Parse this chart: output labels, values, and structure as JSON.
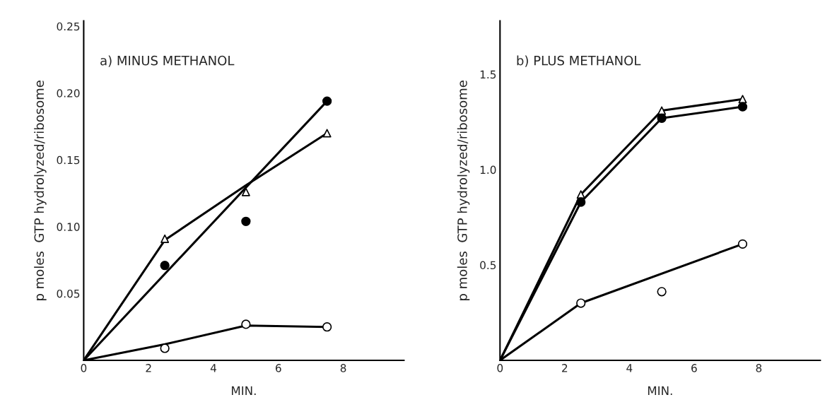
{
  "chart_data": [
    {
      "type": "scatter",
      "title": "a) MINUS METHANOL",
      "xlabel": "MIN.",
      "ylabel": "p moles  GTP hydrolyzed/ribosome",
      "xlim": [
        0,
        9.87
      ],
      "xticks": [
        0,
        2,
        4,
        6,
        8
      ],
      "ylim": [
        0,
        0.254
      ],
      "yticks": [
        0.05,
        {
          "value": 0.1,
          "label": "0.10"
        },
        0.15,
        {
          "value": 0.2,
          "label": "0.20"
        },
        0.25
      ],
      "grid": false,
      "legend": false,
      "series": [
        {
          "marker": "circle",
          "color": "#000000",
          "x": [
            2.5,
            5,
            7.5
          ],
          "values": [
            0.071,
            0.104,
            0.194
          ]
        },
        {
          "marker": "triangle",
          "color": "#ffffff",
          "x": [
            2.5,
            5,
            7.5
          ],
          "values": [
            0.091,
            0.126,
            0.17
          ]
        },
        {
          "marker": "circle",
          "color": "#ffffff",
          "x": [
            2.5,
            5,
            7.5
          ],
          "values": [
            0.009,
            0.027,
            0.025
          ]
        },
        {
          "type": "line",
          "marker": "none",
          "line_style": "solid",
          "color": "#000000",
          "x": [
            0,
            7.5
          ],
          "values": [
            0,
            0.194
          ]
        },
        {
          "type": "line",
          "marker": "none",
          "line_style": "solid",
          "color": "#000000",
          "x": [
            0,
            2.5,
            5,
            7.5
          ],
          "values": [
            0,
            0.09,
            0.131,
            0.17
          ]
        },
        {
          "type": "line",
          "marker": "none",
          "line_style": "solid",
          "color": "#000000",
          "x": [
            0,
            2.5,
            5,
            7.5
          ],
          "values": [
            0,
            0.012,
            0.026,
            0.025
          ]
        }
      ]
    },
    {
      "type": "scatter",
      "title": "b) PLUS METHANOL",
      "xlabel": "MIN.",
      "ylabel": "p moles  GTP hydrolyzed/ribosome",
      "xlim": [
        0,
        9.9
      ],
      "xticks": [
        0,
        2,
        4,
        6,
        8
      ],
      "ylim": [
        0,
        1.78
      ],
      "yticks": [
        0.5,
        {
          "value": 1.0,
          "label": "1.0"
        },
        1.5
      ],
      "grid": false,
      "legend": false,
      "series": [
        {
          "marker": "triangle",
          "color": "#ffffff",
          "x": [
            2.5,
            5,
            7.5
          ],
          "values": [
            0.87,
            1.31,
            1.37
          ]
        },
        {
          "marker": "circle",
          "color": "#000000",
          "x": [
            2.5,
            5,
            7.5
          ],
          "values": [
            0.83,
            1.27,
            1.33
          ]
        },
        {
          "marker": "circle",
          "color": "#ffffff",
          "x": [
            2.5,
            5,
            7.5
          ],
          "values": [
            0.3,
            0.36,
            0.61
          ]
        },
        {
          "type": "line",
          "marker": "none",
          "line_style": "solid",
          "color": "#000000",
          "x": [
            0,
            2.5,
            5,
            7.5
          ],
          "values": [
            0,
            0.87,
            1.31,
            1.37
          ]
        },
        {
          "type": "line",
          "marker": "none",
          "line_style": "solid",
          "color": "#000000",
          "x": [
            0,
            2.5,
            5,
            7.5
          ],
          "values": [
            0,
            0.83,
            1.27,
            1.33
          ]
        },
        {
          "type": "line",
          "marker": "none",
          "line_style": "solid",
          "color": "#000000",
          "x": [
            0,
            2.5,
            7.5
          ],
          "values": [
            0,
            0.3,
            0.61
          ]
        }
      ]
    }
  ]
}
